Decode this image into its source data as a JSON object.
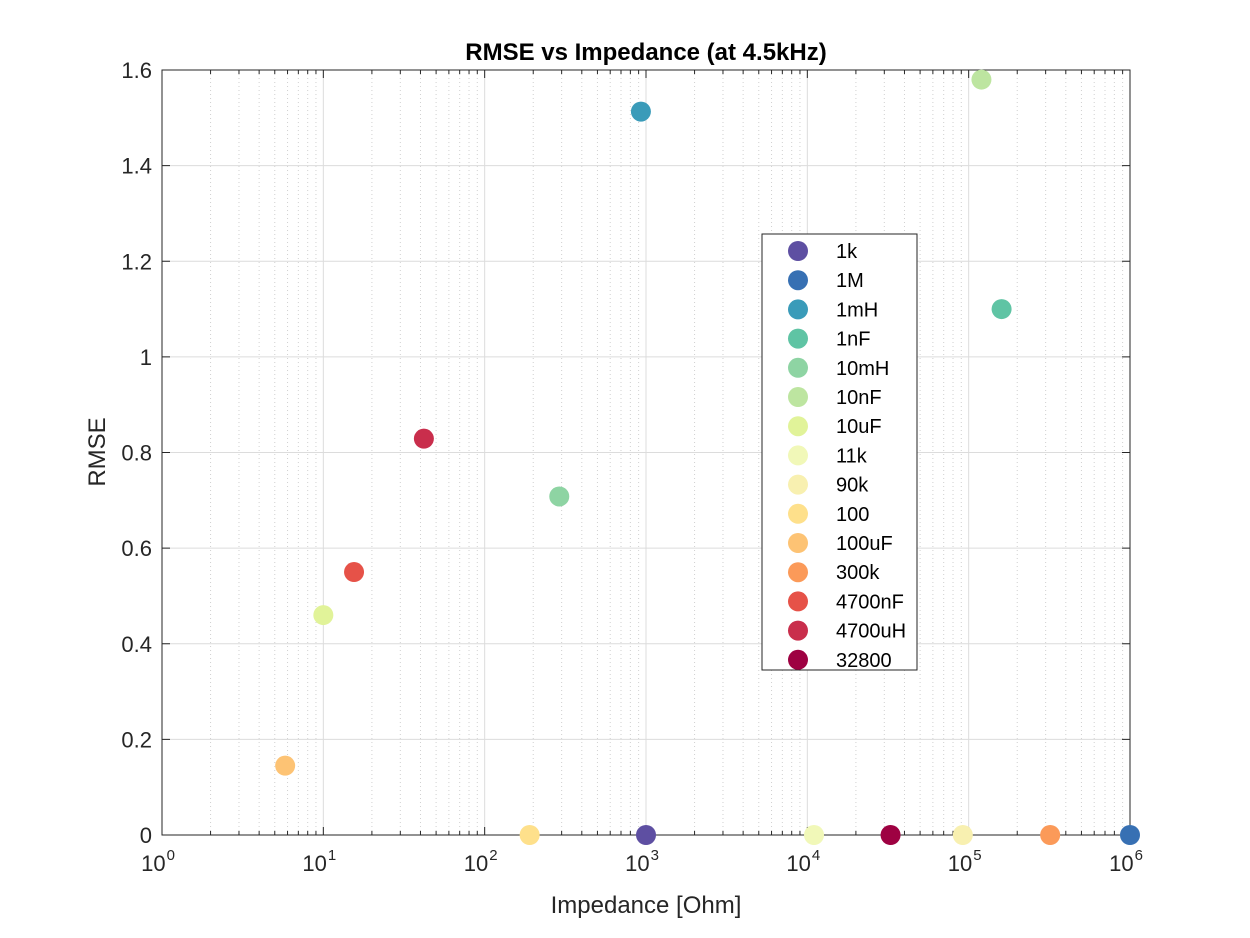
{
  "chart_data": {
    "type": "scatter",
    "title": "RMSE vs Impedance (at 4.5kHz)",
    "xlabel": "Impedance [Ohm]",
    "ylabel": "RMSE",
    "xscale": "log",
    "xlim": [
      1,
      1000000
    ],
    "ylim": [
      0,
      1.6
    ],
    "grid": true,
    "legend_position": "center-right",
    "x_tick_labels": [
      {
        "base": "10",
        "exp": "0"
      },
      {
        "base": "10",
        "exp": "1"
      },
      {
        "base": "10",
        "exp": "2"
      },
      {
        "base": "10",
        "exp": "3"
      },
      {
        "base": "10",
        "exp": "4"
      },
      {
        "base": "10",
        "exp": "5"
      },
      {
        "base": "10",
        "exp": "6"
      }
    ],
    "y_tick_labels": [
      "0",
      "0.2",
      "0.4",
      "0.6",
      "0.8",
      "1",
      "1.2",
      "1.4",
      "1.6"
    ],
    "series": [
      {
        "name": "1k",
        "color": "#5E4FA2",
        "x": 1000,
        "y": 0
      },
      {
        "name": "1M",
        "color": "#3770B3",
        "x": 1000000,
        "y": 0
      },
      {
        "name": "1mH",
        "color": "#3A9BB9",
        "x": 930,
        "y": 1.513
      },
      {
        "name": "1nF",
        "color": "#5FC4A4",
        "x": 160000,
        "y": 1.1
      },
      {
        "name": "10mH",
        "color": "#8ED4A3",
        "x": 290,
        "y": 0.708
      },
      {
        "name": "10nF",
        "color": "#BDE5A0",
        "x": 120000,
        "y": 1.58
      },
      {
        "name": "10uF",
        "color": "#E1F399",
        "x": 10,
        "y": 0.46
      },
      {
        "name": "11k",
        "color": "#F1F8B8",
        "x": 11000,
        "y": 0
      },
      {
        "name": "90k",
        "color": "#F8F0B0",
        "x": 92000,
        "y": 0
      },
      {
        "name": "100",
        "color": "#FEE08B",
        "x": 190,
        "y": 0
      },
      {
        "name": "100uF",
        "color": "#FDC374",
        "x": 5.8,
        "y": 0.145
      },
      {
        "name": "300k",
        "color": "#FB9A59",
        "x": 320000,
        "y": 0
      },
      {
        "name": "4700nF",
        "color": "#E65248",
        "x": 15.5,
        "y": 0.55
      },
      {
        "name": "4700uH",
        "color": "#C92E4C",
        "x": 42,
        "y": 0.829
      },
      {
        "name": "32800",
        "color": "#9E0142",
        "x": 32800,
        "y": 0
      }
    ]
  }
}
